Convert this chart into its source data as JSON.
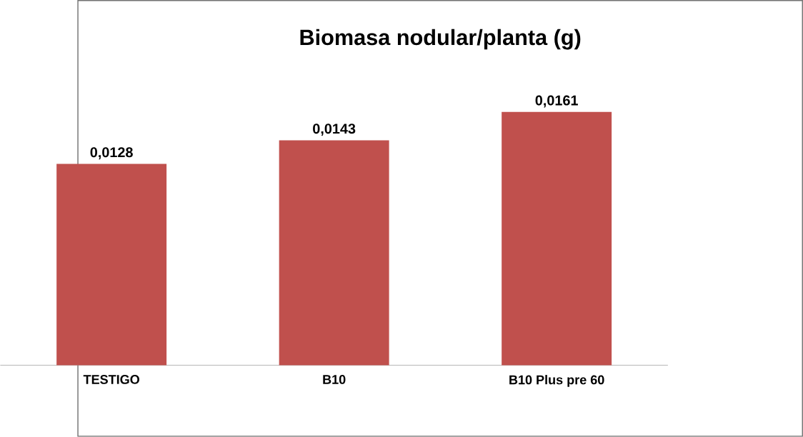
{
  "chart_data": {
    "type": "bar",
    "title": "Biomasa nodular/planta (g)",
    "categories": [
      "TESTIGO",
      "B10",
      "B10 Plus pre 60"
    ],
    "values": [
      0.0128,
      0.0143,
      0.0161
    ],
    "value_labels": [
      "0,0128",
      "0,0143",
      "0,0161"
    ],
    "color": "#c0504d"
  }
}
